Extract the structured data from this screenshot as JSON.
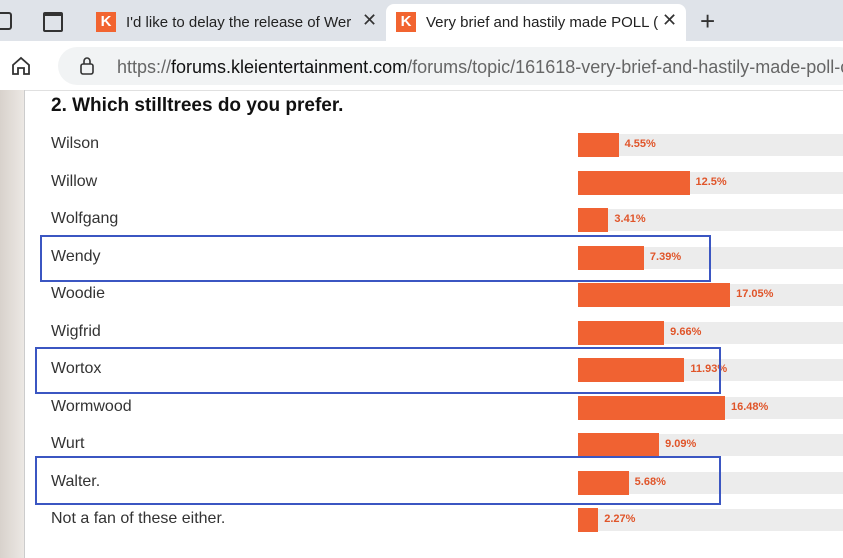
{
  "browser": {
    "tabs": [
      {
        "title": "I'd like to delay the release of Wer"
      },
      {
        "title": "Very brief and hastily made POLL ("
      }
    ],
    "address": {
      "scheme": "https://",
      "host": "forums.kleientertainment.com",
      "path": "/forums/topic/161618-very-brief-and-hastily-made-poll-c"
    }
  },
  "poll": {
    "question": "2. Which stilltrees do you prefer.",
    "options": [
      {
        "label": "Wilson",
        "value": 4.55,
        "value_label": "4.55%"
      },
      {
        "label": "Willow",
        "value": 12.5,
        "value_label": "12.5%"
      },
      {
        "label": "Wolfgang",
        "value": 3.41,
        "value_label": "3.41%"
      },
      {
        "label": "Wendy",
        "value": 7.39,
        "value_label": "7.39%"
      },
      {
        "label": "Woodie",
        "value": 17.05,
        "value_label": "17.05%"
      },
      {
        "label": "Wigfrid",
        "value": 9.66,
        "value_label": "9.66%"
      },
      {
        "label": "Wortox",
        "value": 11.93,
        "value_label": "11.93%"
      },
      {
        "label": "Wormwood",
        "value": 16.48,
        "value_label": "16.48%"
      },
      {
        "label": "Wurt",
        "value": 9.09,
        "value_label": "9.09%"
      },
      {
        "label": "Walter.",
        "value": 5.68,
        "value_label": "5.68%"
      },
      {
        "label": "Not a fan of these either.",
        "value": 2.27,
        "value_label": "2.27%"
      }
    ]
  }
}
